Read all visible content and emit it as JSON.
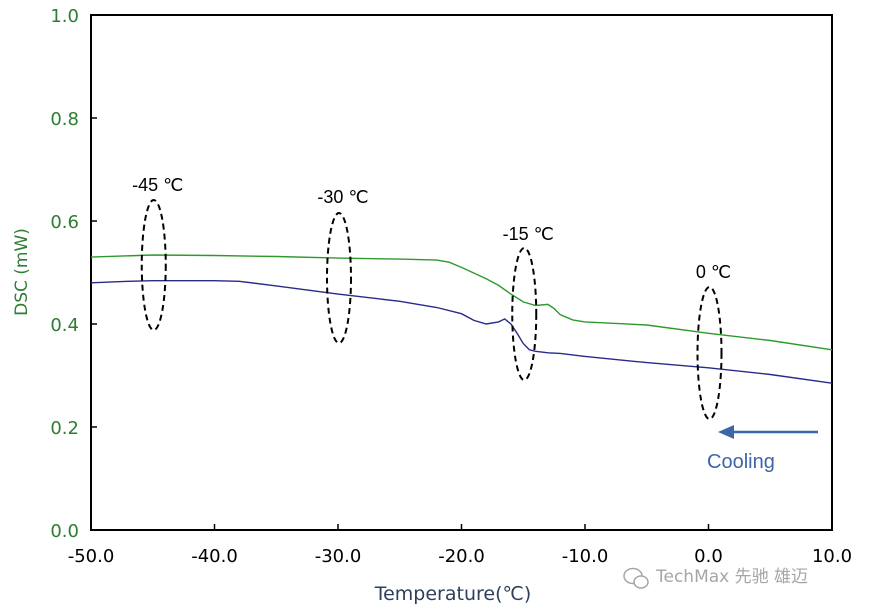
{
  "chart_data": {
    "type": "line",
    "title": "",
    "xlabel": "Temperature(℃)",
    "ylabel": "DSC (mW)",
    "xlim": [
      -50,
      10
    ],
    "ylim": [
      0,
      1
    ],
    "x_ticks": [
      "-50.0",
      "-40.0",
      "-30.0",
      "-20.0",
      "-10.0",
      "0.0",
      "10.0"
    ],
    "y_ticks": [
      "0.0",
      "0.2",
      "0.4",
      "0.6",
      "0.8",
      "1.0"
    ],
    "colors": {
      "green": "#2e9a2e",
      "blue": "#2a2a8a",
      "ytext": "#2e7d32",
      "cooling": "#3b67a8"
    },
    "series": [
      {
        "name": "green",
        "x": [
          -50,
          -45,
          -40,
          -35,
          -30,
          -25,
          -22,
          -21,
          -20,
          -18,
          -17,
          -16,
          -15,
          -14,
          -13,
          -12.5,
          -12,
          -11,
          -10,
          -5,
          0,
          5,
          10
        ],
        "y": [
          0.53,
          0.534,
          0.533,
          0.531,
          0.528,
          0.526,
          0.524,
          0.52,
          0.51,
          0.488,
          0.475,
          0.458,
          0.443,
          0.436,
          0.438,
          0.43,
          0.418,
          0.408,
          0.404,
          0.398,
          0.382,
          0.368,
          0.35
        ]
      },
      {
        "name": "blue",
        "x": [
          -50,
          -47,
          -45,
          -40,
          -38,
          -35,
          -30,
          -25,
          -22,
          -20,
          -19,
          -18,
          -17,
          -16.5,
          -16,
          -15.5,
          -15,
          -14.5,
          -14,
          -13,
          -12,
          -10,
          -5,
          0,
          5,
          10
        ],
        "y": [
          0.48,
          0.483,
          0.484,
          0.484,
          0.483,
          0.474,
          0.458,
          0.444,
          0.432,
          0.42,
          0.407,
          0.4,
          0.404,
          0.41,
          0.4,
          0.382,
          0.362,
          0.35,
          0.347,
          0.344,
          0.343,
          0.337,
          0.325,
          0.315,
          0.302,
          0.285
        ]
      }
    ],
    "annotations": [
      {
        "label": "-45 ℃",
        "x": -45
      },
      {
        "label": "-30 ℃",
        "x": -30
      },
      {
        "label": "-15 ℃",
        "x": -15
      },
      {
        "label": "0 ℃",
        "x": 0
      }
    ],
    "arrow_label": "Cooling"
  },
  "watermark": "TechMax 先驰 雄迈",
  "watermark_icon": "wechat-icon"
}
